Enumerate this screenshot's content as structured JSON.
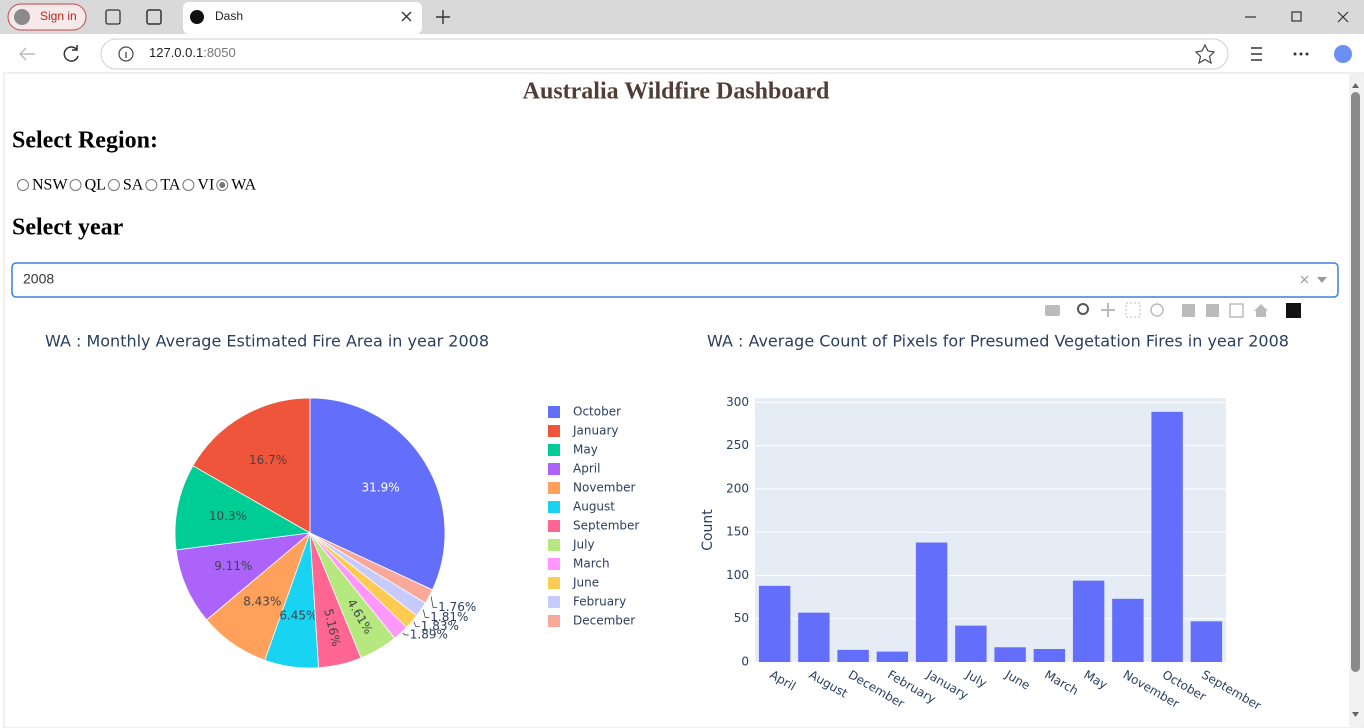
{
  "browser": {
    "sign_in": "Sign in",
    "tab_title": "Dash",
    "url_host": "127.0.0.1",
    "url_port": ":8050"
  },
  "app": {
    "title": "Australia Wildfire Dashboard",
    "region_label": "Select Region:",
    "regions": [
      {
        "label": "NSW",
        "checked": false
      },
      {
        "label": "QL",
        "checked": false
      },
      {
        "label": "SA",
        "checked": false
      },
      {
        "label": "TA",
        "checked": false
      },
      {
        "label": "VI",
        "checked": false
      },
      {
        "label": "WA",
        "checked": true
      }
    ],
    "year_label": "Select year",
    "year_value": "2008"
  },
  "chart_data": [
    {
      "type": "pie",
      "title": "WA : Monthly Average Estimated Fire Area in year 2008",
      "categories": [
        "October",
        "January",
        "May",
        "April",
        "November",
        "August",
        "September",
        "July",
        "March",
        "June",
        "February",
        "December"
      ],
      "values": [
        31.9,
        16.7,
        10.3,
        9.11,
        8.43,
        6.45,
        5.16,
        4.61,
        1.89,
        1.83,
        1.81,
        1.76
      ],
      "value_labels": [
        "31.9%",
        "16.7%",
        "10.3%",
        "9.11%",
        "8.43%",
        "6.45%",
        "5.16%",
        "4.61%",
        "1.89%",
        "1.83%",
        "1.81%",
        "1.76%"
      ],
      "colors": [
        "#636efa",
        "#ef553b",
        "#00cc96",
        "#ab63fa",
        "#ffa15a",
        "#19d3f3",
        "#ff6692",
        "#b6e880",
        "#ff97ff",
        "#fecb52",
        "#c6cafc",
        "#f8a99a"
      ],
      "legend": true
    },
    {
      "type": "bar",
      "title": "WA : Average Count of Pixels for Presumed Vegetation Fires in year 2008",
      "y_label": "Count",
      "categories": [
        "April",
        "August",
        "December",
        "February",
        "January",
        "July",
        "June",
        "March",
        "May",
        "November",
        "October",
        "September"
      ],
      "values": [
        88,
        57,
        14,
        12,
        138,
        42,
        17,
        15,
        94,
        73,
        289,
        47
      ],
      "color": "#636efa",
      "ylim": [
        0,
        305
      ],
      "yticks": [
        0,
        50,
        100,
        150,
        200,
        250,
        300
      ],
      "grid": true
    }
  ]
}
